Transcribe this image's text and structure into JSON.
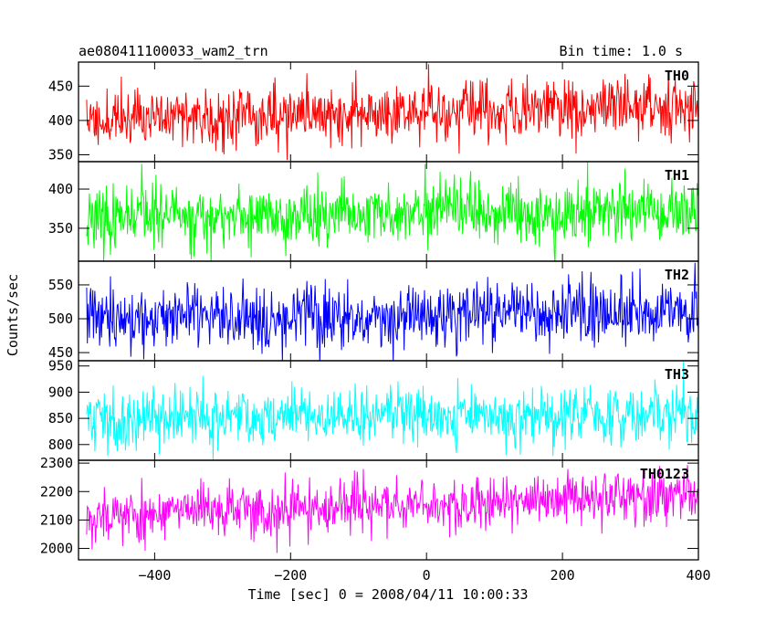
{
  "header": {
    "title": "ae080411100033_wam2_trn",
    "bin_time": "Bin time: 1.0 s"
  },
  "chart_data": {
    "type": "line",
    "xlabel": "Time [sec] 0 = 2008/04/11 10:00:33",
    "ylabel": "Counts/sec",
    "xlim": [
      -512,
      400
    ],
    "xticks": [
      -400,
      -200,
      0,
      200,
      400
    ],
    "xtick_labels": [
      "−400",
      "−200",
      "0",
      "200",
      "400"
    ],
    "panels": [
      {
        "name": "TH0",
        "color": "#ff0000",
        "ylim": [
          340,
          485
        ],
        "yticks": [
          350,
          400,
          450
        ],
        "ytick_labels": [
          "350",
          "400",
          "450"
        ],
        "mean_start": 402,
        "mean_end": 422,
        "spread": 22,
        "seed": 11
      },
      {
        "name": "TH1",
        "color": "#00ff00",
        "ylim": [
          308,
          435
        ],
        "yticks": [
          350,
          400
        ],
        "ytick_labels": [
          "350",
          "400"
        ],
        "mean_start": 362,
        "mean_end": 370,
        "spread": 20,
        "seed": 23
      },
      {
        "name": "TH2",
        "color": "#0000ff",
        "ylim": [
          438,
          585
        ],
        "yticks": [
          450,
          500,
          550
        ],
        "ytick_labels": [
          "450",
          "500",
          "550"
        ],
        "mean_start": 502,
        "mean_end": 510,
        "spread": 24,
        "seed": 37
      },
      {
        "name": "TH3",
        "color": "#00ffff",
        "ylim": [
          770,
          960
        ],
        "yticks": [
          800,
          850,
          900,
          950
        ],
        "ytick_labels": [
          "800",
          "850",
          "900",
          "950"
        ],
        "mean_start": 850,
        "mean_end": 858,
        "spread": 28,
        "seed": 41
      },
      {
        "name": "TH0123",
        "color": "#ff00ff",
        "ylim": [
          1960,
          2310
        ],
        "yticks": [
          2000,
          2100,
          2200,
          2300
        ],
        "ytick_labels": [
          "2000",
          "2100",
          "2200",
          "2300"
        ],
        "mean_start": 2115,
        "mean_end": 2190,
        "spread": 48,
        "seed": 53
      }
    ]
  }
}
